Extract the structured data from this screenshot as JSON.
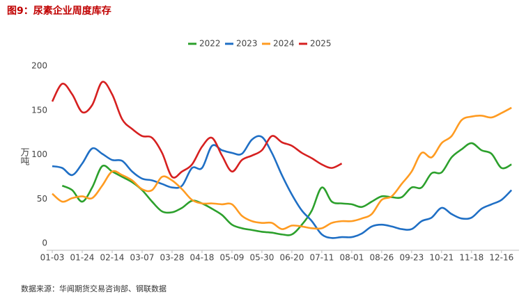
{
  "chart_data": {
    "type": "line",
    "title": "图9：尿素企业周度库存",
    "y_label": "万吨",
    "source": "数据来源：华闻期货交易咨询部、钢联数据",
    "categories": [
      "01-03",
      null,
      null,
      "01-24",
      null,
      null,
      "02-14",
      null,
      null,
      "03-07",
      null,
      null,
      "03-28",
      null,
      null,
      "04-18",
      null,
      null,
      "05-09",
      null,
      null,
      "05-30",
      null,
      null,
      "06-20",
      null,
      null,
      "07-11",
      null,
      null,
      "08-01",
      null,
      null,
      "08-26",
      null,
      null,
      "09-23",
      null,
      null,
      "10-21",
      null,
      null,
      "11-18",
      null,
      null,
      "12-16",
      null
    ],
    "ylim": [
      0,
      200
    ],
    "yticks": [
      0,
      50,
      100,
      150,
      200
    ],
    "legend": "top",
    "series": [
      {
        "name": "2022",
        "color": "#2ca02c",
        "values": [
          null,
          65,
          60,
          47,
          63,
          87,
          81,
          75,
          69,
          60,
          47,
          36,
          35,
          40,
          48,
          45,
          39,
          32,
          21,
          17,
          15,
          13,
          12,
          10,
          10,
          21,
          37,
          63,
          47,
          45,
          44,
          41,
          47,
          53,
          52,
          52,
          63,
          63,
          79,
          80,
          97,
          106,
          113,
          105,
          101,
          85,
          89
        ]
      },
      {
        "name": "2023",
        "color": "#1f6fc5",
        "values": [
          87,
          85,
          77,
          90,
          107,
          101,
          94,
          93,
          81,
          73,
          71,
          67,
          63,
          65,
          85,
          85,
          110,
          105,
          102,
          101,
          117,
          120,
          102,
          77,
          55,
          37,
          25,
          10,
          6,
          7,
          7,
          11,
          19,
          21,
          19,
          16,
          16,
          25,
          29,
          40,
          33,
          28,
          29,
          39,
          44,
          49,
          60
        ]
      },
      {
        "name": "2024",
        "color": "#ff9b21",
        "values": [
          56,
          47,
          51,
          53,
          51,
          65,
          81,
          77,
          71,
          61,
          60,
          75,
          71,
          61,
          49,
          45,
          45,
          44,
          44,
          31,
          25,
          23,
          23,
          16,
          20,
          19,
          17,
          17,
          23,
          25,
          25,
          28,
          33,
          49,
          53,
          67,
          81,
          102,
          97,
          113,
          121,
          139,
          143,
          144,
          142,
          147,
          153
        ]
      },
      {
        "name": "2025",
        "color": "#d62020",
        "values": [
          160,
          180,
          168,
          148,
          156,
          182,
          168,
          140,
          129,
          121,
          119,
          102,
          75,
          81,
          89,
          109,
          119,
          99,
          81,
          94,
          99,
          105,
          121,
          114,
          110,
          102,
          96,
          89,
          85,
          90,
          null,
          null,
          null,
          null,
          null,
          null,
          null,
          null,
          null,
          null,
          null,
          null,
          null,
          null,
          null,
          null,
          null
        ]
      }
    ]
  }
}
